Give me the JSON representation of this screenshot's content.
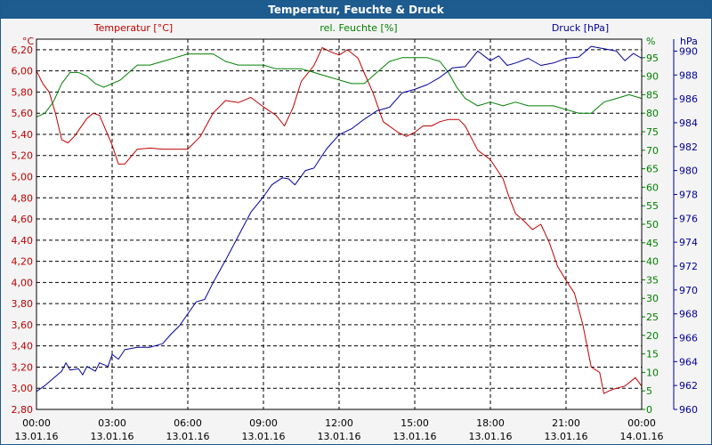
{
  "window": {
    "title": "Temperatur, Feuchte & Druck"
  },
  "chart_data": {
    "type": "line",
    "title": "Temperatur, Feuchte & Druck",
    "grid": true,
    "x": {
      "range": [
        "00:00",
        "00:00"
      ],
      "ticks": [
        {
          "time": "00:00",
          "date": "13.01.16"
        },
        {
          "time": "03:00",
          "date": "13.01.16"
        },
        {
          "time": "06:00",
          "date": "13.01.16"
        },
        {
          "time": "09:00",
          "date": "13.01.16"
        },
        {
          "time": "12:00",
          "date": "13.01.16"
        },
        {
          "time": "15:00",
          "date": "13.01.16"
        },
        {
          "time": "18:00",
          "date": "13.01.16"
        },
        {
          "time": "21:00",
          "date": "13.01.16"
        },
        {
          "time": "00:00",
          "date": "14.01.16"
        }
      ]
    },
    "axes": {
      "temperature": {
        "label": "Temperatur [°C]",
        "unit": "°C",
        "color": "#c00000",
        "side": "left",
        "range": [
          2.8,
          6.3
        ],
        "ticks": [
          "6,20",
          "6,00",
          "5,80",
          "5,60",
          "5,40",
          "5,20",
          "5,00",
          "4,80",
          "4,60",
          "4,40",
          "4,20",
          "4,00",
          "3,80",
          "3,60",
          "3,40",
          "3,20",
          "3,00",
          "2,80"
        ]
      },
      "humidity": {
        "label": "rel. Feuchte [%]",
        "unit": "%",
        "color": "#008000",
        "side": "right",
        "range": [
          0,
          100
        ],
        "ticks": [
          "95",
          "90",
          "85",
          "80",
          "75",
          "70",
          "65",
          "60",
          "55",
          "50",
          "45",
          "40",
          "35",
          "30",
          "25",
          "20",
          "15",
          "10",
          "5",
          "0"
        ]
      },
      "pressure": {
        "label": "Druck [hPa]",
        "unit": "hPa",
        "color": "#000099",
        "side": "right",
        "range": [
          960,
          991
        ],
        "ticks": [
          "990",
          "988",
          "986",
          "984",
          "982",
          "980",
          "978",
          "976",
          "974",
          "972",
          "970",
          "968",
          "966",
          "964",
          "962",
          "960"
        ]
      }
    },
    "series": [
      {
        "name": "Temperatur [°C]",
        "axis": "temperature",
        "color": "#c00000",
        "points": [
          [
            "00:00",
            6.0
          ],
          [
            "00:15",
            5.88
          ],
          [
            "00:30",
            5.8
          ],
          [
            "00:45",
            5.6
          ],
          [
            "01:00",
            5.35
          ],
          [
            "01:15",
            5.32
          ],
          [
            "01:30",
            5.38
          ],
          [
            "02:00",
            5.55
          ],
          [
            "02:15",
            5.6
          ],
          [
            "02:30",
            5.58
          ],
          [
            "03:00",
            5.3
          ],
          [
            "03:15",
            5.12
          ],
          [
            "03:30",
            5.12
          ],
          [
            "04:00",
            5.26
          ],
          [
            "04:30",
            5.27
          ],
          [
            "05:00",
            5.26
          ],
          [
            "05:30",
            5.26
          ],
          [
            "06:00",
            5.26
          ],
          [
            "06:30",
            5.38
          ],
          [
            "07:00",
            5.6
          ],
          [
            "07:30",
            5.72
          ],
          [
            "08:00",
            5.7
          ],
          [
            "08:30",
            5.75
          ],
          [
            "09:00",
            5.66
          ],
          [
            "09:30",
            5.58
          ],
          [
            "09:50",
            5.48
          ],
          [
            "10:10",
            5.65
          ],
          [
            "10:30",
            5.9
          ],
          [
            "11:00",
            6.05
          ],
          [
            "11:20",
            6.22
          ],
          [
            "11:40",
            6.18
          ],
          [
            "12:00",
            6.15
          ],
          [
            "12:20",
            6.2
          ],
          [
            "12:45",
            6.12
          ],
          [
            "13:00",
            5.98
          ],
          [
            "13:20",
            5.8
          ],
          [
            "13:45",
            5.52
          ],
          [
            "14:20",
            5.42
          ],
          [
            "14:40",
            5.38
          ],
          [
            "15:00",
            5.42
          ],
          [
            "15:20",
            5.48
          ],
          [
            "15:40",
            5.48
          ],
          [
            "16:00",
            5.52
          ],
          [
            "16:20",
            5.54
          ],
          [
            "16:45",
            5.54
          ],
          [
            "17:00",
            5.48
          ],
          [
            "17:30",
            5.25
          ],
          [
            "18:00",
            5.16
          ],
          [
            "18:30",
            4.98
          ],
          [
            "18:45",
            4.8
          ],
          [
            "19:00",
            4.65
          ],
          [
            "19:20",
            4.58
          ],
          [
            "19:40",
            4.5
          ],
          [
            "20:00",
            4.55
          ],
          [
            "20:20",
            4.38
          ],
          [
            "20:40",
            4.15
          ],
          [
            "21:00",
            4.02
          ],
          [
            "21:20",
            3.9
          ],
          [
            "21:40",
            3.6
          ],
          [
            "22:00",
            3.2
          ],
          [
            "22:20",
            3.15
          ],
          [
            "22:30",
            2.95
          ],
          [
            "22:45",
            2.98
          ],
          [
            "23:00",
            3.0
          ],
          [
            "23:20",
            3.02
          ],
          [
            "23:45",
            3.1
          ],
          [
            "00:00",
            3.02
          ]
        ]
      },
      {
        "name": "rel. Feuchte [%]",
        "axis": "humidity",
        "color": "#008000",
        "points": [
          [
            "00:00",
            79
          ],
          [
            "00:20",
            80
          ],
          [
            "00:40",
            83
          ],
          [
            "01:00",
            88
          ],
          [
            "01:20",
            91
          ],
          [
            "01:40",
            91
          ],
          [
            "02:00",
            90
          ],
          [
            "02:20",
            88
          ],
          [
            "02:40",
            87
          ],
          [
            "03:00",
            88
          ],
          [
            "03:20",
            89
          ],
          [
            "03:40",
            91
          ],
          [
            "04:00",
            93
          ],
          [
            "04:30",
            93
          ],
          [
            "05:00",
            94
          ],
          [
            "05:30",
            95
          ],
          [
            "06:00",
            96
          ],
          [
            "06:30",
            96
          ],
          [
            "07:00",
            96
          ],
          [
            "07:30",
            94
          ],
          [
            "08:00",
            93
          ],
          [
            "08:30",
            93
          ],
          [
            "09:00",
            93
          ],
          [
            "09:30",
            92
          ],
          [
            "10:00",
            92
          ],
          [
            "10:30",
            92
          ],
          [
            "11:00",
            91
          ],
          [
            "11:30",
            90
          ],
          [
            "12:00",
            89
          ],
          [
            "12:30",
            88
          ],
          [
            "13:00",
            88
          ],
          [
            "13:30",
            91
          ],
          [
            "14:00",
            94
          ],
          [
            "14:30",
            95
          ],
          [
            "15:00",
            95
          ],
          [
            "15:30",
            95
          ],
          [
            "16:00",
            94
          ],
          [
            "16:20",
            91
          ],
          [
            "16:40",
            87
          ],
          [
            "17:00",
            84
          ],
          [
            "17:30",
            82
          ],
          [
            "18:00",
            83
          ],
          [
            "18:30",
            82
          ],
          [
            "19:00",
            83
          ],
          [
            "19:30",
            82
          ],
          [
            "20:00",
            82
          ],
          [
            "20:30",
            82
          ],
          [
            "21:00",
            81
          ],
          [
            "21:30",
            80
          ],
          [
            "22:00",
            80
          ],
          [
            "22:30",
            83
          ],
          [
            "23:00",
            84
          ],
          [
            "23:30",
            85
          ],
          [
            "00:00",
            84
          ]
        ]
      },
      {
        "name": "Druck [hPa]",
        "axis": "pressure",
        "color": "#000099",
        "points": [
          [
            "00:00",
            961.5
          ],
          [
            "00:20",
            962.0
          ],
          [
            "00:40",
            962.6
          ],
          [
            "01:00",
            963.2
          ],
          [
            "01:10",
            963.9
          ],
          [
            "01:20",
            963.3
          ],
          [
            "01:40",
            963.4
          ],
          [
            "01:50",
            962.9
          ],
          [
            "02:00",
            963.6
          ],
          [
            "02:20",
            963.2
          ],
          [
            "02:30",
            963.9
          ],
          [
            "02:50",
            963.6
          ],
          [
            "03:00",
            964.6
          ],
          [
            "03:15",
            964.2
          ],
          [
            "03:30",
            965.0
          ],
          [
            "04:00",
            965.2
          ],
          [
            "04:30",
            965.2
          ],
          [
            "05:00",
            965.5
          ],
          [
            "05:20",
            966.3
          ],
          [
            "05:40",
            967.0
          ],
          [
            "06:00",
            968.0
          ],
          [
            "06:20",
            969.0
          ],
          [
            "06:40",
            969.2
          ],
          [
            "07:00",
            970.6
          ],
          [
            "07:30",
            972.5
          ],
          [
            "08:00",
            974.5
          ],
          [
            "08:30",
            976.5
          ],
          [
            "09:00",
            977.8
          ],
          [
            "09:20",
            978.8
          ],
          [
            "09:45",
            979.4
          ],
          [
            "10:00",
            979.3
          ],
          [
            "10:15",
            978.8
          ],
          [
            "10:40",
            980.0
          ],
          [
            "11:00",
            980.2
          ],
          [
            "11:30",
            981.8
          ],
          [
            "12:00",
            983.0
          ],
          [
            "12:30",
            983.5
          ],
          [
            "13:00",
            984.3
          ],
          [
            "13:30",
            985.0
          ],
          [
            "14:00",
            985.3
          ],
          [
            "14:30",
            986.5
          ],
          [
            "15:00",
            986.8
          ],
          [
            "15:30",
            987.2
          ],
          [
            "16:00",
            987.8
          ],
          [
            "16:30",
            988.6
          ],
          [
            "17:00",
            988.7
          ],
          [
            "17:30",
            990.0
          ],
          [
            "18:00",
            989.2
          ],
          [
            "18:20",
            989.6
          ],
          [
            "18:40",
            988.8
          ],
          [
            "19:00",
            989.0
          ],
          [
            "19:30",
            989.4
          ],
          [
            "20:00",
            988.8
          ],
          [
            "20:30",
            989.0
          ],
          [
            "21:00",
            989.4
          ],
          [
            "21:30",
            989.5
          ],
          [
            "22:00",
            990.4
          ],
          [
            "22:30",
            990.2
          ],
          [
            "23:00",
            990.0
          ],
          [
            "23:20",
            989.2
          ],
          [
            "23:40",
            989.8
          ],
          [
            "00:00",
            989.4
          ]
        ]
      }
    ]
  }
}
